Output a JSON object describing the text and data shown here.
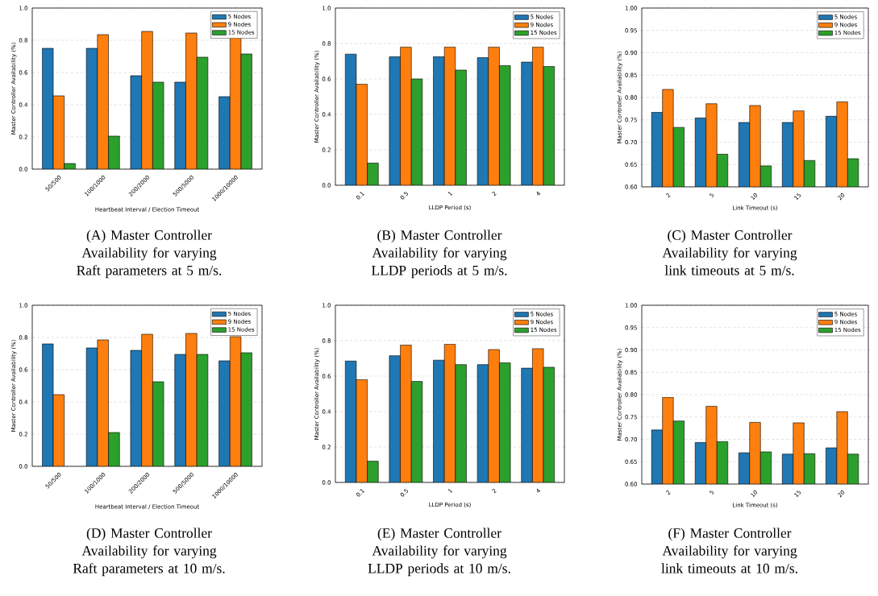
{
  "chart_data": [
    {
      "type": "bar",
      "categories": [
        "50/500",
        "100/1000",
        "200/2000",
        "500/5000",
        "1000/10000"
      ],
      "xlabel": "Heartbeat Interval / Election Timeout",
      "ylabel": "Master Controller Availability (%)",
      "ylim": [
        0,
        1
      ],
      "yticks": [
        {
          "value": 0,
          "label": "0.0"
        },
        0.2,
        0.4,
        0.6,
        0.8,
        {
          "value": 1,
          "label": "1.0"
        }
      ],
      "grid": "y",
      "legend": "top right",
      "series": [
        {
          "name": "5 Nodes",
          "color": "#1f77b4",
          "values": [
            0.75,
            0.75,
            0.58,
            0.54,
            0.45
          ]
        },
        {
          "name": "9 Nodes",
          "color": "#ff7f0e",
          "values": [
            0.455,
            0.835,
            0.855,
            0.845,
            0.825
          ]
        },
        {
          "name": "15 Nodes",
          "color": "#2ca02c",
          "values": [
            0.035,
            0.205,
            0.54,
            0.695,
            0.715
          ]
        }
      ],
      "annotations": [
        "(A) Master Controller Availability for varying Raft parameters at 5 m/s."
      ]
    },
    {
      "type": "bar",
      "categories": [
        "0.1",
        "0.5",
        "1",
        "2",
        "4"
      ],
      "xlabel": "LLDP Period (s)",
      "ylabel": "Master Controller Availability (%)",
      "ylim": [
        0,
        1
      ],
      "yticks": [
        {
          "value": 0,
          "label": "0.0"
        },
        0.2,
        0.4,
        0.6,
        0.8,
        {
          "value": 1,
          "label": "1.0"
        }
      ],
      "grid": "y",
      "legend": "top right",
      "series": [
        {
          "name": "5 Nodes",
          "color": "#1f77b4",
          "values": [
            0.74,
            0.725,
            0.725,
            0.72,
            0.695
          ]
        },
        {
          "name": "9 Nodes",
          "color": "#ff7f0e",
          "values": [
            0.57,
            0.78,
            0.78,
            0.78,
            0.78
          ]
        },
        {
          "name": "15 Nodes",
          "color": "#2ca02c",
          "values": [
            0.125,
            0.6,
            0.65,
            0.675,
            0.67
          ]
        }
      ],
      "annotations": [
        "(B) Master Controller Availability for varying LLDP periods at 5 m/s."
      ]
    },
    {
      "type": "bar",
      "categories": [
        "2",
        "5",
        "10",
        "15",
        "20"
      ],
      "xlabel": "Link Timeout (s)",
      "ylabel": "Master Controller Availability (%)",
      "ylim": [
        0.6,
        1
      ],
      "yticks": [
        {
          "value": 0.6,
          "label": "0.60"
        },
        0.65,
        {
          "value": 0.7,
          "label": "0.70"
        },
        0.75,
        {
          "value": 0.8,
          "label": "0.80"
        },
        0.85,
        {
          "value": 0.9,
          "label": "0.90"
        },
        0.95,
        {
          "value": 1,
          "label": "1.00"
        }
      ],
      "grid": "y",
      "legend": "top right",
      "series": [
        {
          "name": "5 Nodes",
          "color": "#1f77b4",
          "values": [
            0.767,
            0.754,
            0.744,
            0.744,
            0.758
          ]
        },
        {
          "name": "9 Nodes",
          "color": "#ff7f0e",
          "values": [
            0.818,
            0.786,
            0.782,
            0.77,
            0.79
          ]
        },
        {
          "name": "15 Nodes",
          "color": "#2ca02c",
          "values": [
            0.733,
            0.673,
            0.647,
            0.659,
            0.663
          ]
        }
      ],
      "annotations": [
        "(C) Master Controller Availability for varying link timeouts at 5 m/s."
      ]
    },
    {
      "type": "bar",
      "categories": [
        "50/500",
        "100/1000",
        "200/2000",
        "500/5000",
        "1000/10000"
      ],
      "xlabel": "Heartbeat Interval / Election Timeout",
      "ylabel": "Master Controller Availability (%)",
      "ylim": [
        0,
        1
      ],
      "yticks": [
        {
          "value": 0,
          "label": "0.0"
        },
        0.2,
        0.4,
        0.6,
        0.8,
        {
          "value": 1,
          "label": "1.0"
        }
      ],
      "grid": "y",
      "legend": "top right",
      "series": [
        {
          "name": "5 Nodes",
          "color": "#1f77b4",
          "values": [
            0.76,
            0.735,
            0.72,
            0.695,
            0.655
          ]
        },
        {
          "name": "9 Nodes",
          "color": "#ff7f0e",
          "values": [
            0.445,
            0.785,
            0.82,
            0.825,
            0.805
          ]
        },
        {
          "name": "15 Nodes",
          "color": "#2ca02c",
          "values": [
            null,
            0.21,
            0.525,
            0.695,
            0.705
          ]
        }
      ],
      "annotations": [
        "(D) Master Controller Availability for varying Raft parameters at 10 m/s."
      ]
    },
    {
      "type": "bar",
      "categories": [
        "0.1",
        "0.5",
        "1",
        "2",
        "4"
      ],
      "xlabel": "LLDP Period (s)",
      "ylabel": "Master Controller Availability (%)",
      "ylim": [
        0,
        1
      ],
      "yticks": [
        {
          "value": 0,
          "label": "0.0"
        },
        0.2,
        0.4,
        0.6,
        0.8,
        {
          "value": 1,
          "label": "1.0"
        }
      ],
      "grid": "y",
      "legend": "top right",
      "series": [
        {
          "name": "5 Nodes",
          "color": "#1f77b4",
          "values": [
            0.685,
            0.715,
            0.69,
            0.665,
            0.645
          ]
        },
        {
          "name": "9 Nodes",
          "color": "#ff7f0e",
          "values": [
            0.58,
            0.775,
            0.78,
            0.75,
            0.755
          ]
        },
        {
          "name": "15 Nodes",
          "color": "#2ca02c",
          "values": [
            0.12,
            0.57,
            0.665,
            0.675,
            0.65
          ]
        }
      ],
      "annotations": [
        "(E) Master Controller Availability for varying LLDP periods at 10 m/s."
      ]
    },
    {
      "type": "bar",
      "categories": [
        "2",
        "5",
        "10",
        "15",
        "20"
      ],
      "xlabel": "Link Timeout (s)",
      "ylabel": "Master Controller Availability (%)",
      "ylim": [
        0.6,
        1
      ],
      "yticks": [
        {
          "value": 0.6,
          "label": "0.60"
        },
        0.65,
        {
          "value": 0.7,
          "label": "0.70"
        },
        0.75,
        {
          "value": 0.8,
          "label": "0.80"
        },
        0.85,
        {
          "value": 0.9,
          "label": "0.90"
        },
        0.95,
        {
          "value": 1,
          "label": "1.00"
        }
      ],
      "grid": "y",
      "legend": "top right",
      "series": [
        {
          "name": "5 Nodes",
          "color": "#1f77b4",
          "values": [
            0.721,
            0.693,
            0.67,
            0.667,
            0.681
          ]
        },
        {
          "name": "9 Nodes",
          "color": "#ff7f0e",
          "values": [
            0.794,
            0.774,
            0.738,
            0.737,
            0.762
          ]
        },
        {
          "name": "15 Nodes",
          "color": "#2ca02c",
          "values": [
            0.741,
            0.695,
            0.672,
            0.668,
            0.667
          ]
        }
      ],
      "annotations": [
        "(F) Master Controller Availability for varying link timeouts at 10 m/s."
      ]
    }
  ]
}
